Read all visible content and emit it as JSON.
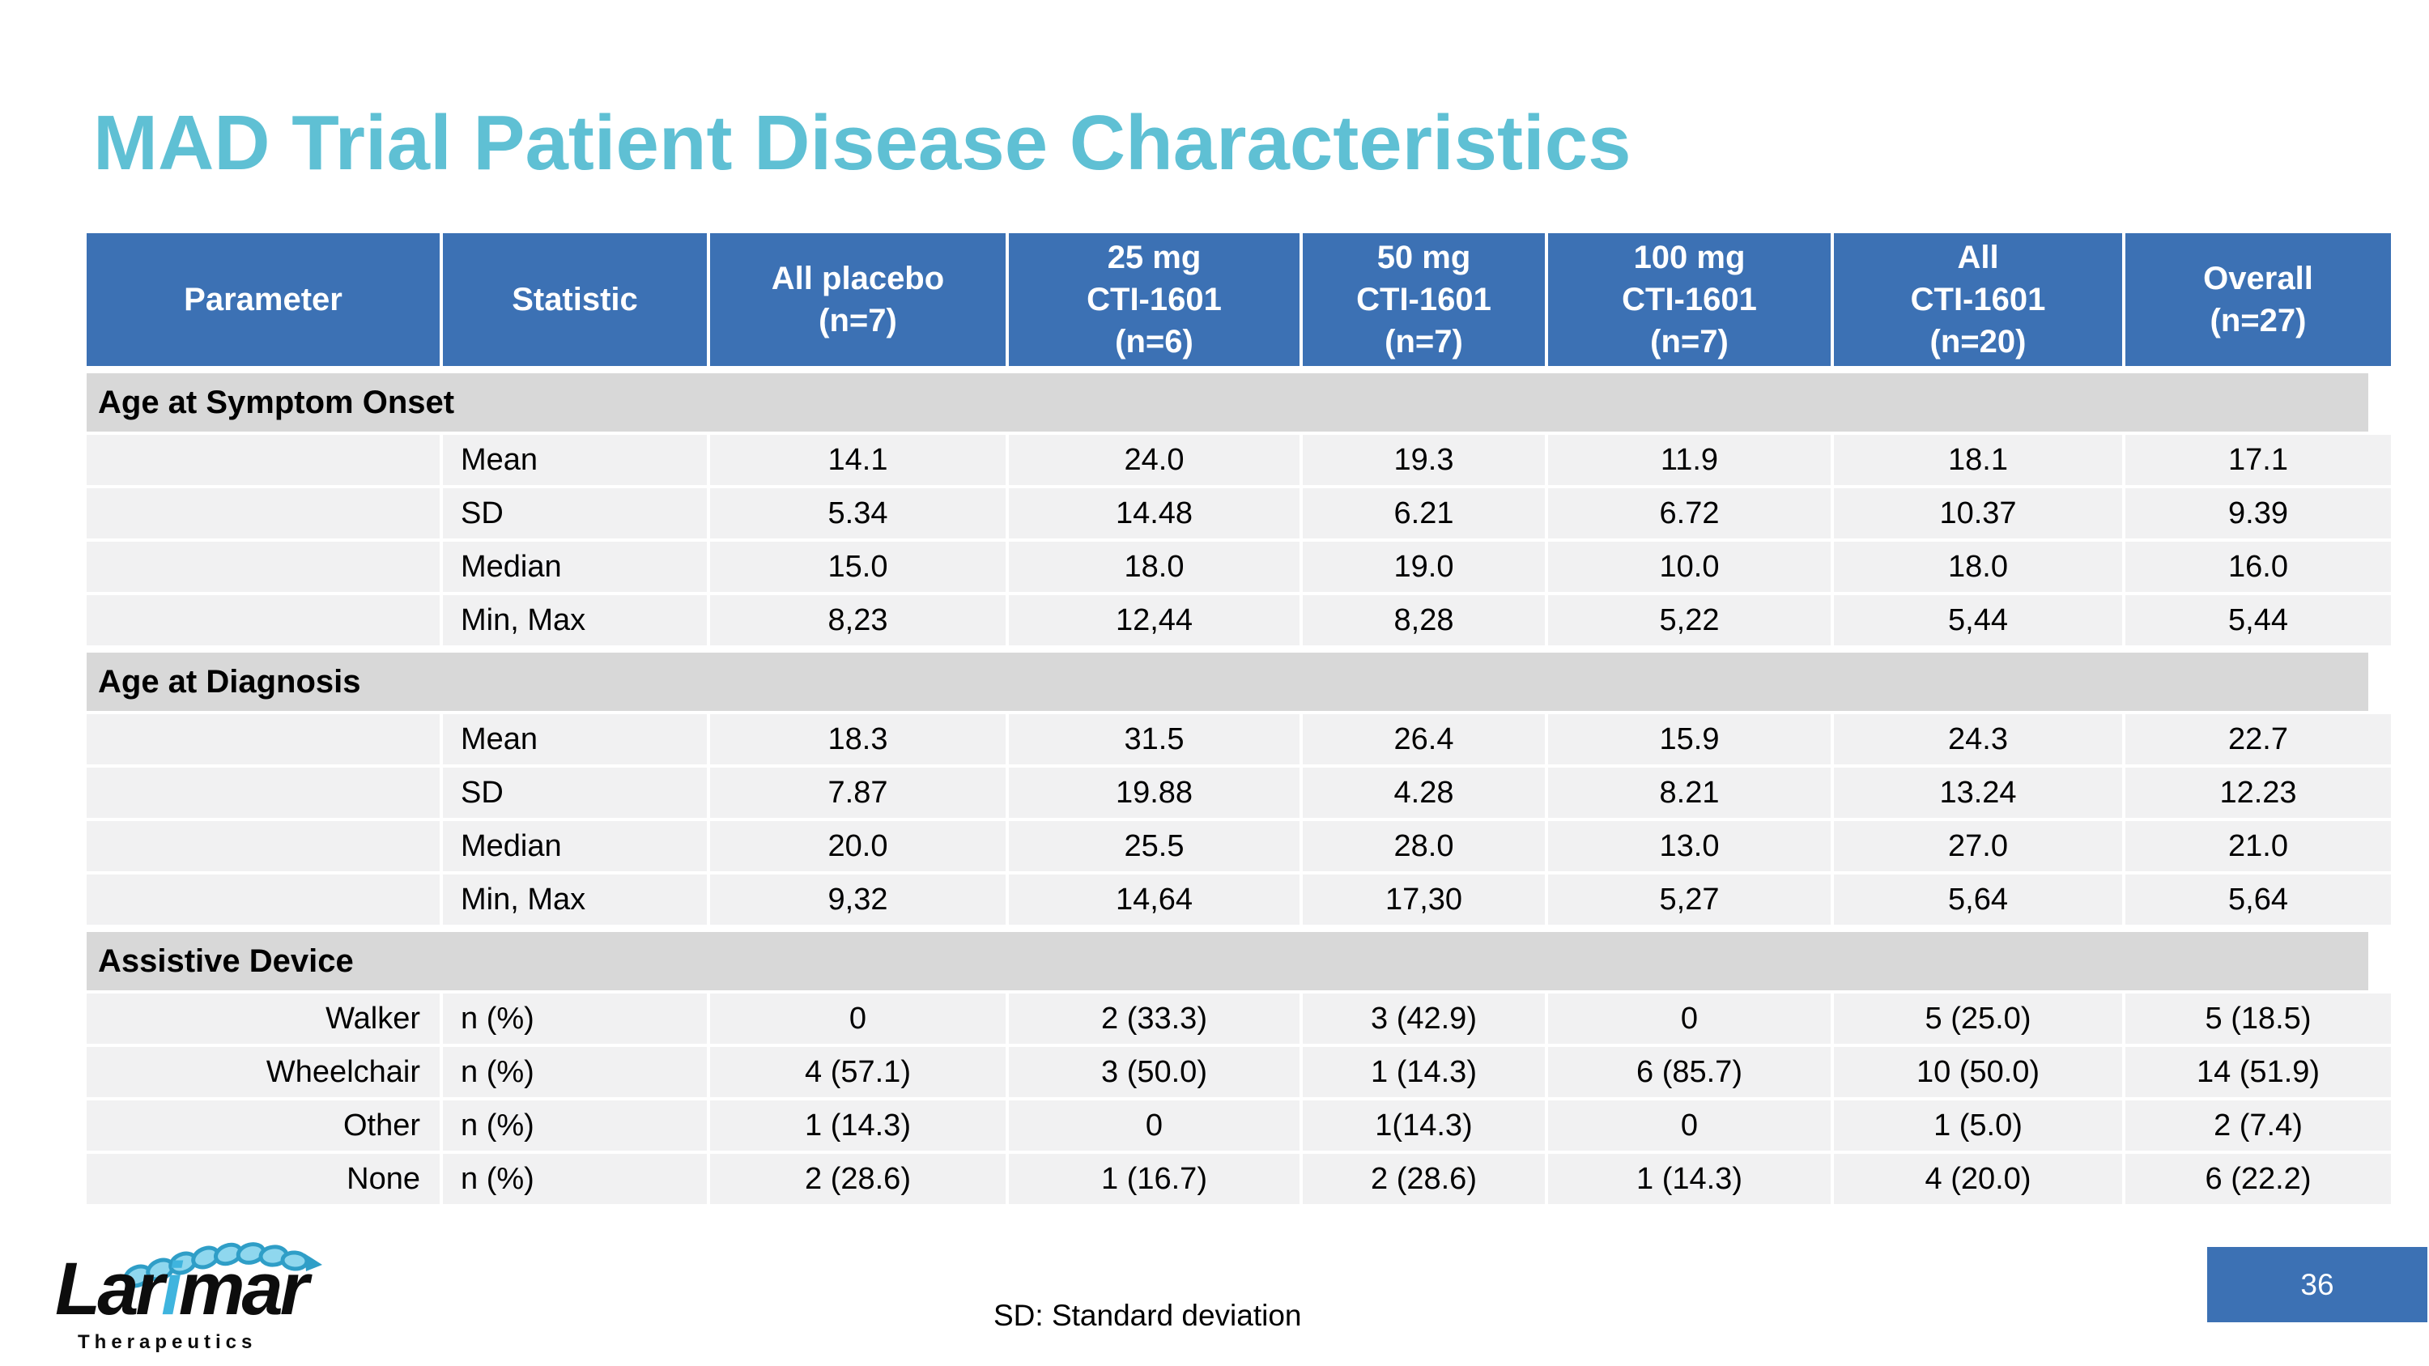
{
  "slide": {
    "title": "MAD Trial Patient Disease Characteristics",
    "footnote": "SD: Standard deviation",
    "page_number": "36"
  },
  "logo": {
    "word_start": "Lar",
    "word_i": "i",
    "word_end": "mar",
    "subtitle": "Therapeutics",
    "coil_icon": "helix-ribbon-icon"
  },
  "colors": {
    "header_blue": "#3C71B4",
    "title_teal": "#5FC0D4",
    "section_gray": "#D8D8D8",
    "row_gray": "#F1F1F2",
    "logo_blue": "#3FB4DE"
  },
  "table": {
    "columns": [
      "Parameter",
      "Statistic",
      "All placebo\n(n=7)",
      "25 mg\nCTI-1601\n(n=6)",
      "50 mg\nCTI-1601\n(n=7)",
      "100 mg\nCTI-1601\n(n=7)",
      "All\nCTI-1601\n(n=20)",
      "Overall\n(n=27)"
    ],
    "sections": [
      {
        "title": "Age at Symptom Onset",
        "rows": [
          {
            "parameter": "",
            "statistic": "Mean",
            "values": [
              "14.1",
              "24.0",
              "19.3",
              "11.9",
              "18.1",
              "17.1"
            ]
          },
          {
            "parameter": "",
            "statistic": "SD",
            "values": [
              "5.34",
              "14.48",
              "6.21",
              "6.72",
              "10.37",
              "9.39"
            ]
          },
          {
            "parameter": "",
            "statistic": "Median",
            "values": [
              "15.0",
              "18.0",
              "19.0",
              "10.0",
              "18.0",
              "16.0"
            ]
          },
          {
            "parameter": "",
            "statistic": "Min, Max",
            "values": [
              "8,23",
              "12,44",
              "8,28",
              "5,22",
              "5,44",
              "5,44"
            ]
          }
        ]
      },
      {
        "title": "Age at Diagnosis",
        "rows": [
          {
            "parameter": "",
            "statistic": "Mean",
            "values": [
              "18.3",
              "31.5",
              "26.4",
              "15.9",
              "24.3",
              "22.7"
            ]
          },
          {
            "parameter": "",
            "statistic": "SD",
            "values": [
              "7.87",
              "19.88",
              "4.28",
              "8.21",
              "13.24",
              "12.23"
            ]
          },
          {
            "parameter": "",
            "statistic": "Median",
            "values": [
              "20.0",
              "25.5",
              "28.0",
              "13.0",
              "27.0",
              "21.0"
            ]
          },
          {
            "parameter": "",
            "statistic": "Min, Max",
            "values": [
              "9,32",
              "14,64",
              "17,30",
              "5,27",
              "5,64",
              "5,64"
            ]
          }
        ]
      },
      {
        "title": "Assistive Device",
        "rows": [
          {
            "parameter": "Walker",
            "statistic": "n (%)",
            "values": [
              "0",
              "2 (33.3)",
              "3 (42.9)",
              "0",
              "5 (25.0)",
              "5 (18.5)"
            ]
          },
          {
            "parameter": "Wheelchair",
            "statistic": "n (%)",
            "values": [
              "4 (57.1)",
              "3 (50.0)",
              "1 (14.3)",
              "6 (85.7)",
              "10 (50.0)",
              "14 (51.9)"
            ]
          },
          {
            "parameter": "Other",
            "statistic": "n (%)",
            "values": [
              "1 (14.3)",
              "0",
              "1(14.3)",
              "0",
              "1 (5.0)",
              "2 (7.4)"
            ]
          },
          {
            "parameter": "None",
            "statistic": "n (%)",
            "values": [
              "2 (28.6)",
              "1 (16.7)",
              "2 (28.6)",
              "1 (14.3)",
              "4 (20.0)",
              "6 (22.2)"
            ]
          }
        ]
      }
    ]
  }
}
